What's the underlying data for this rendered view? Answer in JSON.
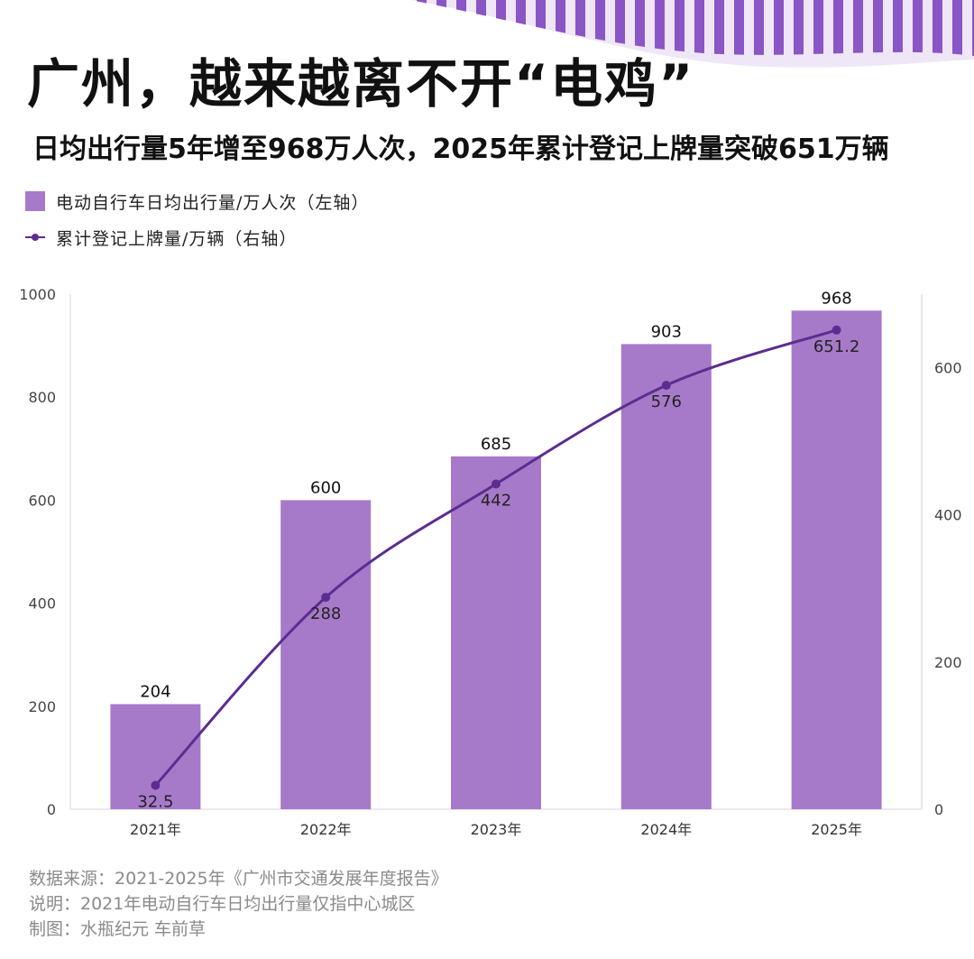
{
  "title": "广州，越来越离不开“电鸡”",
  "subtitle": "日均出行量5年增至968万人次，2025年累计登记上牌量突破651万辆",
  "colors": {
    "bar": "#a77ac9",
    "line": "#5b2d91",
    "accent": "#8a55c5"
  },
  "legend": [
    {
      "label": "电动自行车日均出行量/万人次（左轴）",
      "type": "bar"
    },
    {
      "label": "累计登记上牌量/万辆（右轴）",
      "type": "line"
    }
  ],
  "chart_data": {
    "type": "bar",
    "categories": [
      "2021年",
      "2022年",
      "2023年",
      "2024年",
      "2025年"
    ],
    "series": [
      {
        "name": "电动自行车日均出行量/万人次（左轴）",
        "type": "bar",
        "axis": "left",
        "values": [
          204,
          600,
          685,
          903,
          968
        ],
        "labels": [
          "204",
          "600",
          "685",
          "903",
          "968"
        ]
      },
      {
        "name": "累计登记上牌量/万辆（右轴）",
        "type": "line",
        "axis": "right",
        "values": [
          32.5,
          288,
          442,
          576,
          651.2
        ],
        "labels": [
          "32.5",
          "288",
          "442",
          "576",
          "651.2"
        ]
      }
    ],
    "y_left": {
      "range": [
        0,
        1000
      ],
      "ticks": [
        "0",
        "200",
        "400",
        "600",
        "800",
        "1000"
      ]
    },
    "y_right": {
      "range": [
        0,
        700
      ],
      "ticks": [
        "0",
        "200",
        "400",
        "600"
      ]
    },
    "grid": false
  },
  "footer": {
    "source": "数据来源：2021-2025年《广州市交通发展年度报告》",
    "note": "说明：2021年电动自行车日均出行量仅指中心城区",
    "credit": "制图：水瓶纪元 车前草"
  }
}
